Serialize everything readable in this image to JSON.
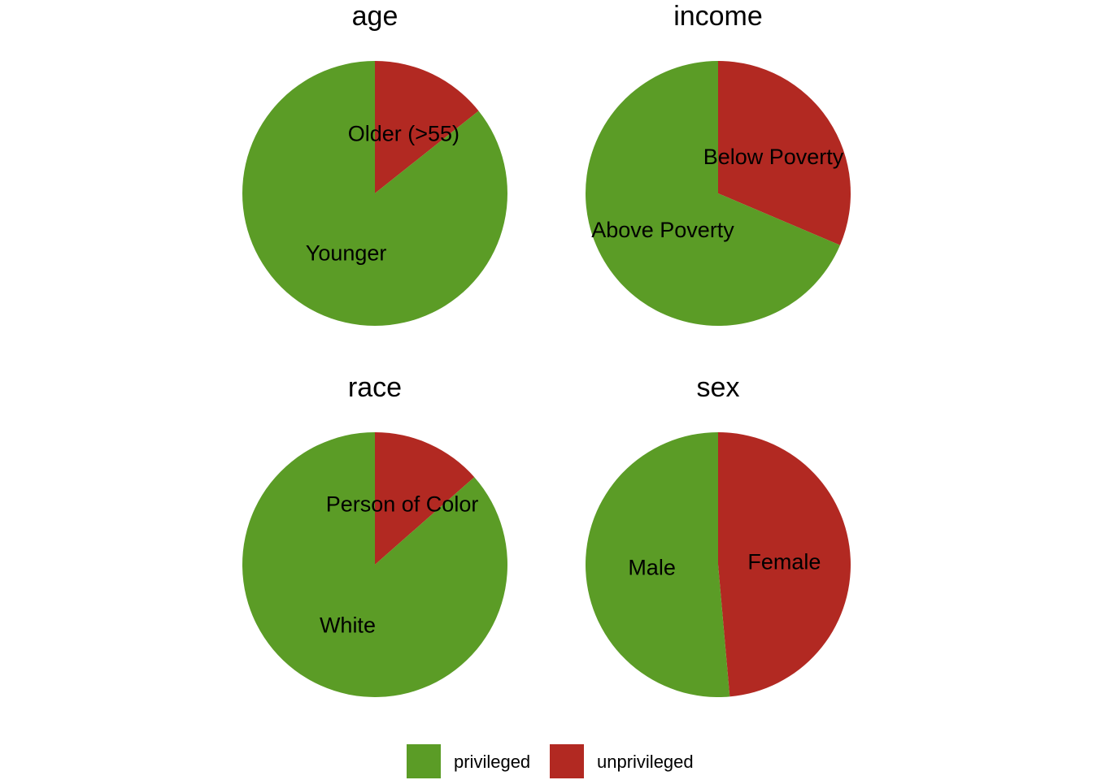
{
  "colors": {
    "privileged": "#5b9c26",
    "unprivileged": "#b22922"
  },
  "legend": {
    "items": [
      {
        "key": "privileged",
        "label": "privileged"
      },
      {
        "key": "unprivileged",
        "label": "unprivileged"
      }
    ]
  },
  "chart_data": [
    {
      "type": "pie",
      "title": "age",
      "slices": [
        {
          "label": "Older (>55)",
          "group": "unprivileged",
          "value": 0.143
        },
        {
          "label": "Younger",
          "group": "privileged",
          "value": 0.857
        }
      ]
    },
    {
      "type": "pie",
      "title": "income",
      "slices": [
        {
          "label": "Below Poverty",
          "group": "unprivileged",
          "value": 0.314
        },
        {
          "label": "Above Poverty",
          "group": "privileged",
          "value": 0.686
        }
      ]
    },
    {
      "type": "pie",
      "title": "race",
      "slices": [
        {
          "label": "Person of Color",
          "group": "unprivileged",
          "value": 0.135
        },
        {
          "label": "White",
          "group": "privileged",
          "value": 0.865
        }
      ]
    },
    {
      "type": "pie",
      "title": "sex",
      "slices": [
        {
          "label": "Female",
          "group": "unprivileged",
          "value": 0.486
        },
        {
          "label": "Male",
          "group": "privileged",
          "value": 0.514
        }
      ]
    }
  ]
}
